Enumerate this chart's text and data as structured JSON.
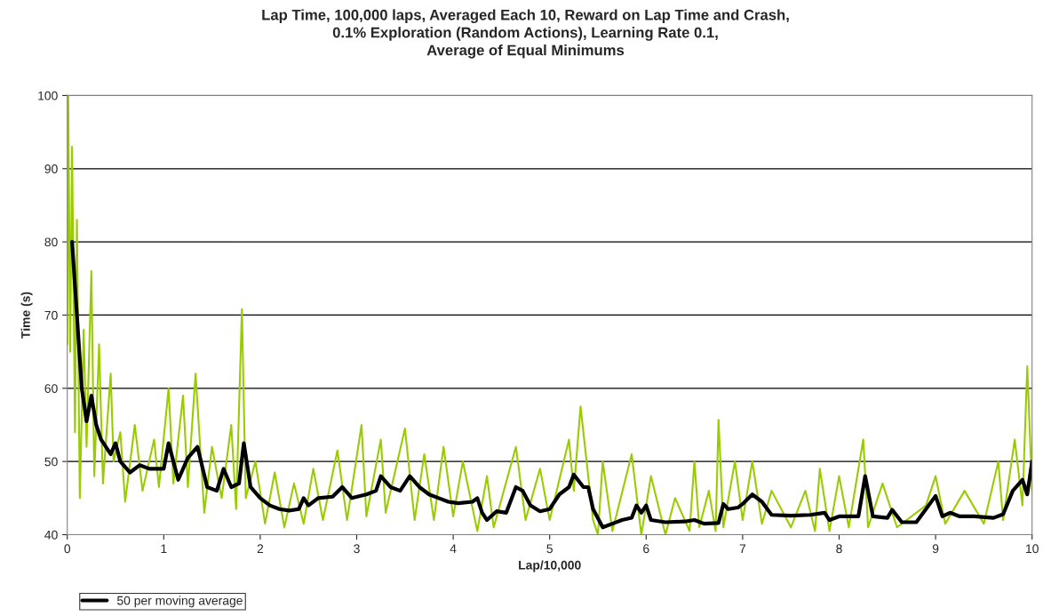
{
  "chart_data": {
    "type": "line",
    "title": "Lap Time, 100,000 laps, Averaged Each 10, Reward on Lap Time and Crash,\n0.1% Exploration (Random Actions), Learning Rate 0.1,\nAverage of Equal Minimums",
    "xlabel": "Lap/10,000",
    "ylabel": "Time (s)",
    "xlim": [
      0,
      10
    ],
    "xticks": [
      0,
      1,
      2,
      3,
      4,
      5,
      6,
      7,
      8,
      9,
      10
    ],
    "ylim": [
      40,
      100
    ],
    "yticks": [
      40,
      50,
      60,
      70,
      80,
      90,
      100
    ],
    "grid": "y",
    "legend": "bottom left",
    "marker": "none",
    "line_style": "solid",
    "series": [
      {
        "color": "#99cc00",
        "x": [
          0,
          0.01,
          0.03,
          0.05,
          0.08,
          0.1,
          0.13,
          0.17,
          0.2,
          0.25,
          0.28,
          0.33,
          0.37,
          0.45,
          0.48,
          0.55,
          0.6,
          0.7,
          0.78,
          0.9,
          0.95,
          1.05,
          1.1,
          1.2,
          1.25,
          1.33,
          1.42,
          1.5,
          1.6,
          1.7,
          1.75,
          1.81,
          1.85,
          1.95,
          2.05,
          2.15,
          2.25,
          2.35,
          2.45,
          2.55,
          2.65,
          2.8,
          2.9,
          3.05,
          3.1,
          3.25,
          3.3,
          3.5,
          3.6,
          3.7,
          3.8,
          3.9,
          4.0,
          4.1,
          4.25,
          4.35,
          4.42,
          4.65,
          4.75,
          4.9,
          5.0,
          5.2,
          5.25,
          5.32,
          5.45,
          5.5,
          5.55,
          5.65,
          5.85,
          5.95,
          6.05,
          6.2,
          6.3,
          6.45,
          6.5,
          6.55,
          6.65,
          6.72,
          6.75,
          6.8,
          6.92,
          7.0,
          7.1,
          7.2,
          7.3,
          7.5,
          7.65,
          7.75,
          7.8,
          7.9,
          8.0,
          8.1,
          8.25,
          8.3,
          8.45,
          8.6,
          8.9,
          9.0,
          9.1,
          9.3,
          9.5,
          9.65,
          9.7,
          9.82,
          9.9,
          9.95,
          10.0
        ],
        "values": [
          66,
          100,
          65,
          93,
          54,
          83,
          45,
          68,
          52,
          76,
          48,
          66,
          47,
          62,
          50,
          54,
          44.5,
          55,
          46,
          53,
          46.5,
          60,
          47,
          59,
          46.5,
          62,
          43,
          52,
          45,
          55,
          43.5,
          70.8,
          45,
          50,
          41.5,
          48.5,
          41,
          47,
          41.5,
          49,
          42,
          51.5,
          42,
          55,
          42.5,
          53,
          43,
          54.5,
          42,
          51,
          42,
          52,
          42.5,
          50,
          40.5,
          48,
          41,
          52,
          42,
          49,
          42,
          53,
          46,
          57.5,
          42,
          40,
          50,
          40.5,
          51,
          40,
          48,
          40,
          45,
          40.5,
          50,
          41,
          46,
          40.5,
          55.7,
          41,
          50,
          42,
          50,
          41.5,
          46,
          41,
          46,
          40.5,
          49,
          40.5,
          48,
          41,
          53,
          41,
          47,
          41,
          44,
          48,
          41.5,
          46,
          41.5,
          50,
          42,
          53,
          44,
          63,
          46
        ]
      },
      {
        "name": "50 per moving average",
        "color": "#000000",
        "x": [
          0.05,
          0.1,
          0.15,
          0.2,
          0.25,
          0.3,
          0.35,
          0.4,
          0.45,
          0.5,
          0.55,
          0.65,
          0.75,
          0.85,
          1.0,
          1.05,
          1.15,
          1.25,
          1.35,
          1.45,
          1.55,
          1.62,
          1.7,
          1.78,
          1.83,
          1.9,
          2.0,
          2.1,
          2.2,
          2.3,
          2.4,
          2.45,
          2.5,
          2.6,
          2.75,
          2.85,
          2.95,
          3.1,
          3.2,
          3.25,
          3.35,
          3.45,
          3.55,
          3.65,
          3.75,
          3.85,
          3.95,
          4.05,
          4.2,
          4.25,
          4.3,
          4.35,
          4.45,
          4.55,
          4.65,
          4.72,
          4.8,
          4.9,
          5.0,
          5.1,
          5.2,
          5.25,
          5.35,
          5.4,
          5.45,
          5.55,
          5.65,
          5.75,
          5.85,
          5.9,
          5.95,
          6.0,
          6.05,
          6.2,
          6.4,
          6.5,
          6.6,
          6.75,
          6.8,
          6.85,
          6.95,
          7.0,
          7.1,
          7.2,
          7.3,
          7.5,
          7.7,
          7.85,
          7.9,
          8.0,
          8.1,
          8.2,
          8.27,
          8.35,
          8.5,
          8.55,
          8.65,
          8.8,
          8.9,
          9.0,
          9.07,
          9.15,
          9.25,
          9.4,
          9.6,
          9.7,
          9.8,
          9.9,
          9.95,
          10.0
        ],
        "values": [
          80,
          70,
          60,
          55.5,
          59,
          55,
          53,
          52,
          51,
          52.5,
          50,
          48.5,
          49.5,
          49,
          49,
          52.5,
          47.5,
          50.5,
          52,
          46.5,
          46,
          49,
          46.5,
          47,
          52.5,
          46.5,
          45,
          44,
          43.5,
          43.3,
          43.5,
          45,
          44,
          45,
          45.2,
          46.5,
          45,
          45.5,
          46,
          48,
          46.5,
          46,
          48,
          46.5,
          45.5,
          45,
          44.5,
          44.3,
          44.5,
          45,
          43,
          42,
          43.2,
          43,
          46.5,
          46,
          44,
          43.2,
          43.5,
          45.5,
          46.5,
          48.2,
          46.5,
          46.5,
          43.5,
          41,
          41.5,
          42,
          42.3,
          44,
          43,
          44,
          42,
          41.7,
          41.8,
          42,
          41.5,
          41.6,
          44.2,
          43.5,
          43.7,
          44.2,
          45.5,
          44.5,
          42.7,
          42.6,
          42.7,
          43,
          42,
          42.5,
          42.5,
          42.5,
          48,
          42.5,
          42.3,
          43.4,
          41.7,
          41.7,
          43.5,
          45.3,
          42.5,
          43,
          42.5,
          42.5,
          42.3,
          42.8,
          46,
          47.5,
          45.5,
          50
        ]
      }
    ]
  }
}
